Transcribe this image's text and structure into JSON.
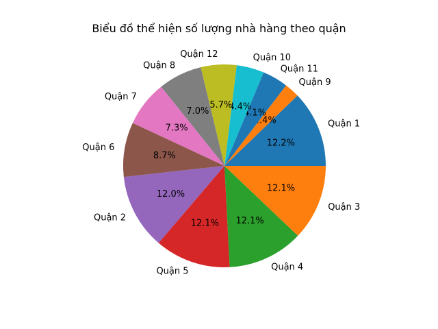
{
  "chart_data": {
    "type": "pie",
    "title": "Biểu đồ thể hiện số lượng nhà hàng theo quận",
    "slices": [
      {
        "label": "Quận 1",
        "value": 12.2,
        "pct_label": "12.2%",
        "color": "#1f77b4"
      },
      {
        "label": "Quận 9",
        "value": 2.4,
        "pct_label": "2.4%",
        "color": "#ff7f0e"
      },
      {
        "label": "Quận 11",
        "value": 4.1,
        "pct_label": "4.1%",
        "color": "#1f77b4"
      },
      {
        "label": "Quận 10",
        "value": 4.4,
        "pct_label": "4.4%",
        "color": "#17becf"
      },
      {
        "label": "Quận 12",
        "value": 5.7,
        "pct_label": "5.7%",
        "color": "#bcbd22"
      },
      {
        "label": "Quận 8",
        "value": 7.0,
        "pct_label": "7.0%",
        "color": "#7f7f7f"
      },
      {
        "label": "Quận 7",
        "value": 7.3,
        "pct_label": "7.3%",
        "color": "#e377c2"
      },
      {
        "label": "Quận 6",
        "value": 8.7,
        "pct_label": "8.7%",
        "color": "#8c564b"
      },
      {
        "label": "Quận 2",
        "value": 12.0,
        "pct_label": "12.0%",
        "color": "#9467bd"
      },
      {
        "label": "Quận 5",
        "value": 12.1,
        "pct_label": "12.1%",
        "color": "#d62728"
      },
      {
        "label": "Quận 4",
        "value": 12.1,
        "pct_label": "12.1%",
        "color": "#2ca02c"
      },
      {
        "label": "Quận 3",
        "value": 12.1,
        "pct_label": "12.1%",
        "color": "#ff7f0e"
      }
    ]
  }
}
